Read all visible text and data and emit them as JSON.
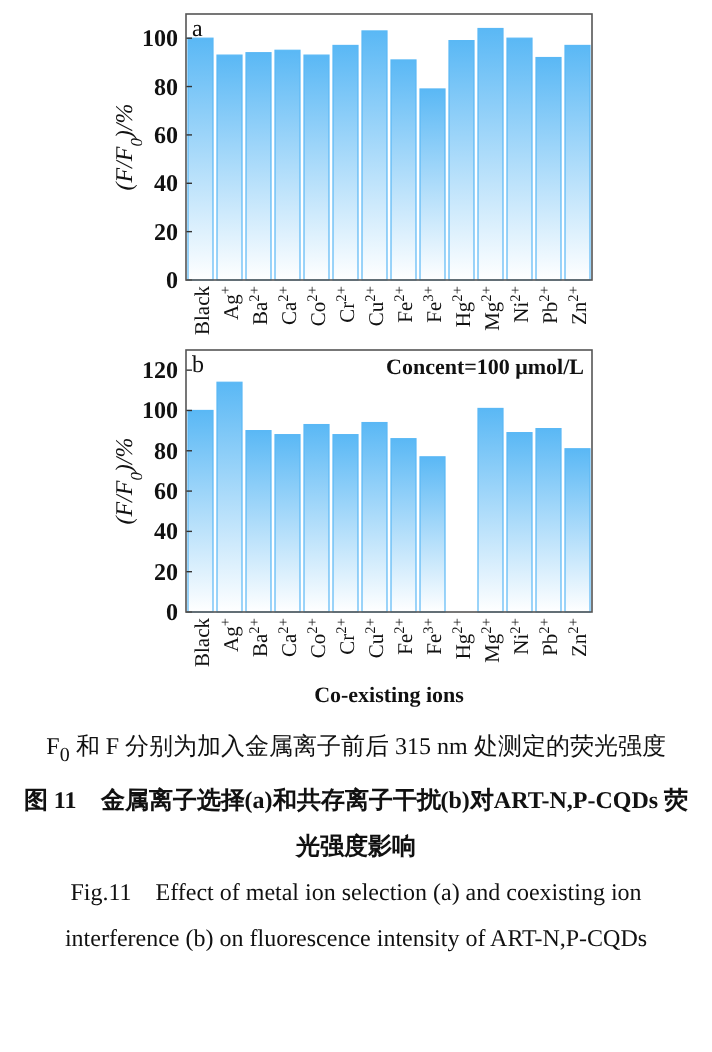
{
  "chart_data": [
    {
      "type": "bar",
      "title": "a",
      "ylabel": "(F/F$_{0}$)/%",
      "categories": [
        "Black",
        "Ag$^{+}$",
        "Ba$^{2+}$",
        "Ca$^{2+}$",
        "Co$^{2+}$",
        "Cr$^{2+}$",
        "Cu$^{2+}$",
        "Fe$^{2+}$",
        "Fe$^{3+}$",
        "Hg$^{2+}$",
        "Mg$^{2+}$",
        "Ni$^{2+}$",
        "Pb$^{2+}$",
        "Zn$^{2+}$"
      ],
      "values": [
        100,
        93,
        94,
        95,
        93,
        97,
        103,
        91,
        79,
        99,
        104,
        100,
        92,
        97
      ],
      "color": "#5ab8f5",
      "ylim": [
        0,
        110
      ],
      "yticks": [
        0,
        20,
        40,
        60,
        80,
        100
      ]
    },
    {
      "type": "bar",
      "title": "b",
      "ylabel": "(F/F$_{0}$)/%",
      "xlabel": "Co-existing ions",
      "categories": [
        "Black",
        "Ag$^{+}$",
        "Ba$^{2+}$",
        "Ca$^{2+}$",
        "Co$^{2+}$",
        "Cr$^{2+}$",
        "Cu$^{2+}$",
        "Fe$^{2+}$",
        "Fe$^{3+}$",
        "Hg$^{2+}$",
        "Mg$^{2+}$",
        "Ni$^{2+}$",
        "Pb$^{2+}$",
        "Zn$^{2+}$"
      ],
      "values": [
        100,
        114,
        90,
        88,
        93,
        88,
        94,
        86,
        77,
        null,
        101,
        89,
        91,
        81
      ],
      "color": "#5ab8f5",
      "ylim": [
        0,
        130
      ],
      "yticks": [
        0,
        20,
        40,
        60,
        80,
        100,
        120
      ],
      "annotations": [
        "Concent=100 μmol/L",
        "F$_{0}$ 和 F 分别为加入金属离子前后 315 nm 处测定的荧光强度",
        "图 11　金属离子选择(a)和共存离子干扰(b)对ART-N,P-CQDs 荧光强度影响",
        "Fig.11　Effect of metal ion selection (a) and coexisting ion interference (b) on fluorescence intensity of ART-N,P-CQDs"
      ]
    }
  ]
}
